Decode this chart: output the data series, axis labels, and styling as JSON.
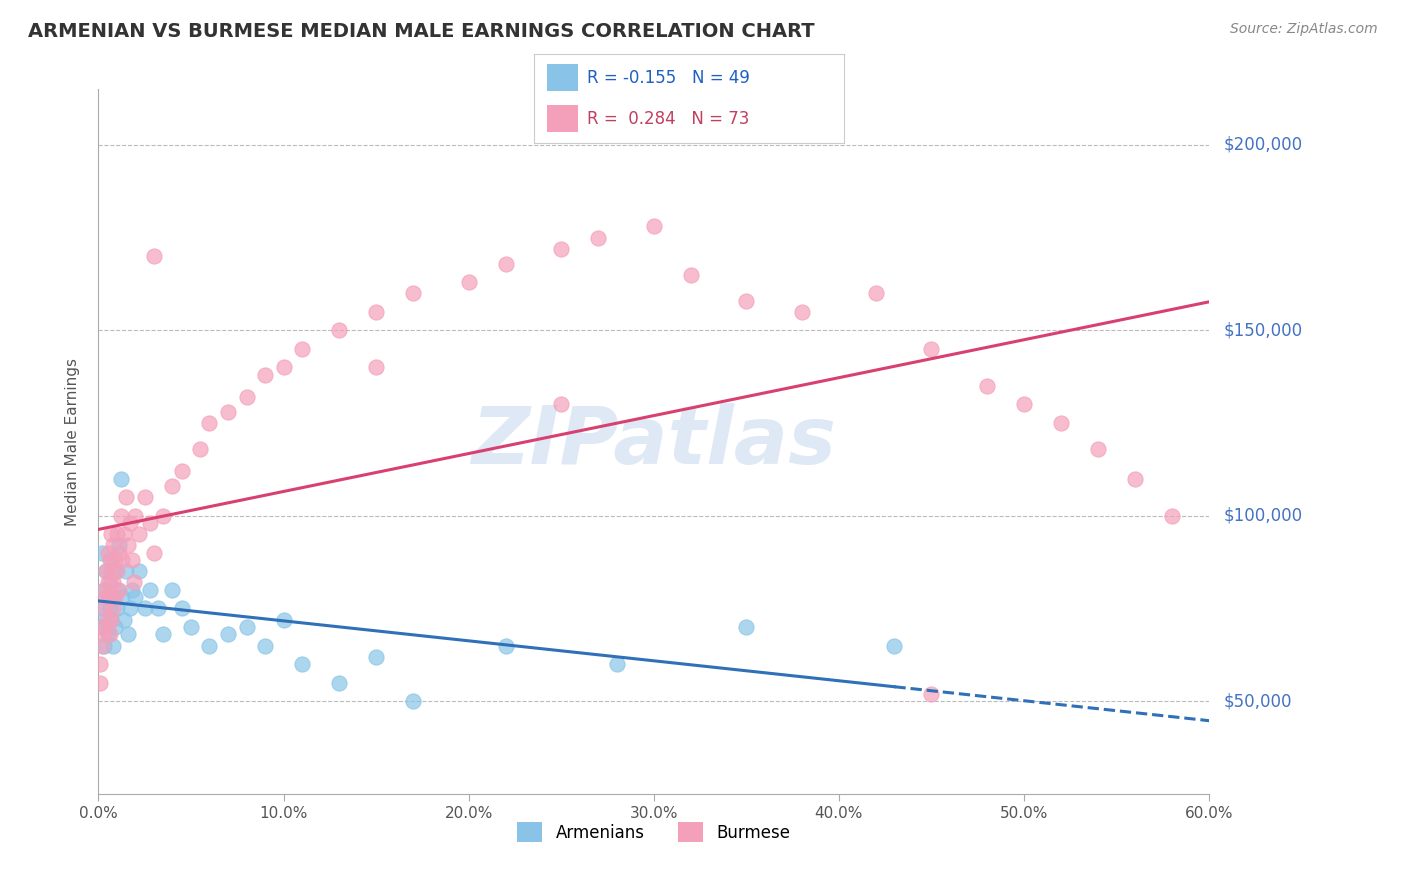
{
  "title": "ARMENIAN VS BURMESE MEDIAN MALE EARNINGS CORRELATION CHART",
  "source": "Source: ZipAtlas.com",
  "ylabel": "Median Male Earnings",
  "xlim": [
    0.0,
    0.6
  ],
  "ylim": [
    25000,
    215000
  ],
  "yticks": [
    50000,
    100000,
    150000,
    200000
  ],
  "ytick_labels": [
    "$50,000",
    "$100,000",
    "$150,000",
    "$200,000"
  ],
  "xticks": [
    0.0,
    0.1,
    0.2,
    0.3,
    0.4,
    0.5,
    0.6
  ],
  "xtick_labels": [
    "0.0%",
    "10.0%",
    "20.0%",
    "30.0%",
    "40.0%",
    "50.0%",
    "60.0%"
  ],
  "armenian_color": "#89c4e8",
  "burmese_color": "#f4a0ba",
  "armenian_line_color": "#3070b8",
  "burmese_line_color": "#d84070",
  "R_armenian": -0.155,
  "N_armenian": 49,
  "R_burmese": 0.284,
  "N_burmese": 73,
  "background_color": "#ffffff",
  "grid_color": "#bbbbbb",
  "title_color": "#333333",
  "axis_label_color": "#555555",
  "ytick_color": "#4472c4",
  "watermark": "ZIPatlas",
  "watermark_color": "#c5d8ef",
  "armenian_x": [
    0.001,
    0.002,
    0.002,
    0.003,
    0.003,
    0.004,
    0.004,
    0.005,
    0.005,
    0.006,
    0.006,
    0.007,
    0.007,
    0.008,
    0.008,
    0.009,
    0.009,
    0.01,
    0.01,
    0.011,
    0.012,
    0.013,
    0.014,
    0.015,
    0.016,
    0.017,
    0.018,
    0.02,
    0.022,
    0.025,
    0.028,
    0.032,
    0.035,
    0.04,
    0.045,
    0.05,
    0.06,
    0.07,
    0.08,
    0.09,
    0.1,
    0.11,
    0.13,
    0.15,
    0.17,
    0.22,
    0.28,
    0.35,
    0.43
  ],
  "armenian_y": [
    75000,
    90000,
    70000,
    80000,
    65000,
    85000,
    72000,
    68000,
    78000,
    82000,
    75000,
    88000,
    72000,
    65000,
    78000,
    85000,
    70000,
    80000,
    75000,
    92000,
    110000,
    78000,
    72000,
    85000,
    68000,
    75000,
    80000,
    78000,
    85000,
    75000,
    80000,
    75000,
    68000,
    80000,
    75000,
    70000,
    65000,
    68000,
    70000,
    65000,
    72000,
    60000,
    55000,
    62000,
    50000,
    65000,
    60000,
    70000,
    65000
  ],
  "burmese_x": [
    0.001,
    0.001,
    0.002,
    0.002,
    0.003,
    0.003,
    0.003,
    0.004,
    0.004,
    0.005,
    0.005,
    0.005,
    0.006,
    0.006,
    0.006,
    0.007,
    0.007,
    0.007,
    0.008,
    0.008,
    0.008,
    0.009,
    0.009,
    0.01,
    0.01,
    0.011,
    0.011,
    0.012,
    0.013,
    0.014,
    0.015,
    0.016,
    0.017,
    0.018,
    0.019,
    0.02,
    0.022,
    0.025,
    0.028,
    0.03,
    0.035,
    0.04,
    0.045,
    0.055,
    0.06,
    0.07,
    0.08,
    0.09,
    0.1,
    0.11,
    0.13,
    0.15,
    0.17,
    0.2,
    0.22,
    0.25,
    0.27,
    0.3,
    0.32,
    0.35,
    0.38,
    0.42,
    0.45,
    0.48,
    0.5,
    0.52,
    0.54,
    0.56,
    0.58,
    0.03,
    0.15,
    0.25,
    0.45
  ],
  "burmese_y": [
    60000,
    55000,
    70000,
    65000,
    80000,
    75000,
    68000,
    85000,
    78000,
    90000,
    82000,
    72000,
    88000,
    78000,
    68000,
    95000,
    85000,
    72000,
    92000,
    82000,
    75000,
    88000,
    78000,
    95000,
    85000,
    90000,
    80000,
    100000,
    88000,
    95000,
    105000,
    92000,
    98000,
    88000,
    82000,
    100000,
    95000,
    105000,
    98000,
    90000,
    100000,
    108000,
    112000,
    118000,
    125000,
    128000,
    132000,
    138000,
    140000,
    145000,
    150000,
    155000,
    160000,
    163000,
    168000,
    172000,
    175000,
    178000,
    165000,
    158000,
    155000,
    160000,
    145000,
    135000,
    130000,
    125000,
    118000,
    110000,
    100000,
    170000,
    140000,
    130000,
    52000
  ]
}
